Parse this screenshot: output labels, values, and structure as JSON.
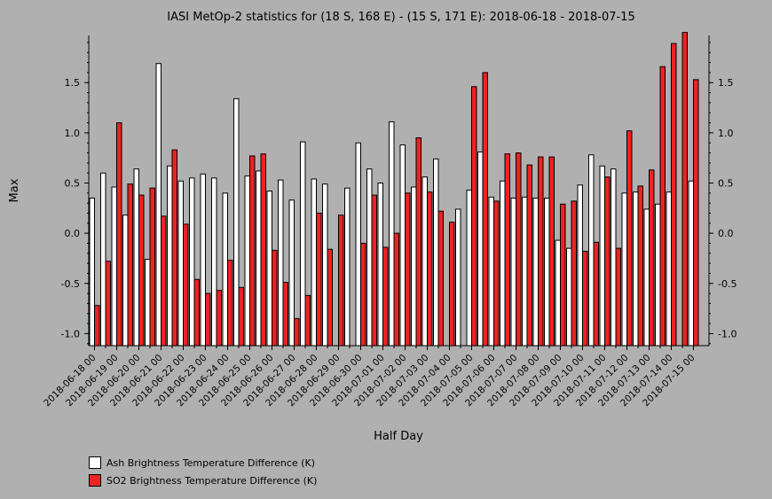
{
  "chart_data": {
    "type": "bar",
    "title": "IASI MetOp-2 statistics for (18 S, 168 E) - (15 S, 171 E): 2018-06-18 - 2018-07-15",
    "xlabel": "Half Day",
    "ylabel": "Max",
    "ylim": [
      -1.12,
      1.97
    ],
    "yticks": [
      -1.0,
      -0.5,
      0.0,
      0.5,
      1.0,
      1.5
    ],
    "ytick_labels": [
      "-1.0",
      "-0.5",
      "0.0",
      "0.5",
      "1.0",
      "1.5"
    ],
    "grid": false,
    "legend_position": "bottom-left",
    "categories": [
      "2018-06-18 00",
      "2018-06-18 12",
      "2018-06-19 00",
      "2018-06-19 12",
      "2018-06-20 00",
      "2018-06-20 12",
      "2018-06-21 00",
      "2018-06-21 12",
      "2018-06-22 00",
      "2018-06-22 12",
      "2018-06-23 00",
      "2018-06-23 12",
      "2018-06-24 00",
      "2018-06-24 12",
      "2018-06-25 00",
      "2018-06-25 12",
      "2018-06-26 00",
      "2018-06-26 12",
      "2018-06-27 00",
      "2018-06-27 12",
      "2018-06-28 00",
      "2018-06-28 12",
      "2018-06-29 00",
      "2018-06-29 12",
      "2018-06-30 00",
      "2018-06-30 12",
      "2018-07-01 00",
      "2018-07-01 12",
      "2018-07-02 00",
      "2018-07-02 12",
      "2018-07-03 00",
      "2018-07-03 12",
      "2018-07-04 00",
      "2018-07-04 12",
      "2018-07-05 00",
      "2018-07-05 12",
      "2018-07-06 00",
      "2018-07-06 12",
      "2018-07-07 00",
      "2018-07-07 12",
      "2018-07-08 00",
      "2018-07-08 12",
      "2018-07-09 00",
      "2018-07-09 12",
      "2018-07-10 00",
      "2018-07-10 12",
      "2018-07-11 00",
      "2018-07-11 12",
      "2018-07-12 00",
      "2018-07-12 12",
      "2018-07-13 00",
      "2018-07-13 12",
      "2018-07-14 00",
      "2018-07-14 12",
      "2018-07-15 00"
    ],
    "xtick_labels": [
      "2018-06-18 00",
      "2018-06-19 00",
      "2018-06-20 00",
      "2018-06-21 00",
      "2018-06-22 00",
      "2018-06-23 00",
      "2018-06-24 00",
      "2018-06-25 00",
      "2018-06-26 00",
      "2018-06-27 00",
      "2018-06-28 00",
      "2018-06-29 00",
      "2018-06-30 00",
      "2018-07-01 00",
      "2018-07-02 00",
      "2018-07-03 00",
      "2018-07-04 00",
      "2018-07-05 00",
      "2018-07-06 00",
      "2018-07-07 00",
      "2018-07-08 00",
      "2018-07-09 00",
      "2018-07-10 00",
      "2018-07-11 00",
      "2018-07-12 00",
      "2018-07-13 00",
      "2018-07-14 00",
      "2018-07-15 00"
    ],
    "series": [
      {
        "name": "Ash Brightness Temperature Difference (K)",
        "color": "#ffffff",
        "values": [
          0.35,
          0.6,
          0.46,
          0.18,
          0.64,
          -0.26,
          1.69,
          0.67,
          0.52,
          0.55,
          0.59,
          0.55,
          0.4,
          1.34,
          0.57,
          0.62,
          0.42,
          0.53,
          0.33,
          0.91,
          0.54,
          0.49,
          null,
          0.45,
          0.9,
          0.64,
          0.5,
          1.11,
          0.88,
          0.46,
          0.56,
          0.74,
          null,
          0.24,
          0.43,
          0.81,
          0.36,
          0.52,
          0.35,
          0.36,
          0.35,
          0.35,
          -0.07,
          -0.15,
          0.48,
          0.78,
          0.67,
          0.64,
          0.4,
          0.41,
          0.24,
          0.29,
          0.41,
          null,
          0.52
        ]
      },
      {
        "name": "SO2 Brightness Temperature Difference (K)",
        "color": "#ee2222",
        "values": [
          -0.72,
          -0.28,
          1.1,
          0.49,
          0.38,
          0.45,
          0.17,
          0.83,
          0.09,
          -0.46,
          -0.6,
          -0.57,
          -0.27,
          -0.54,
          0.77,
          0.79,
          -0.17,
          -0.49,
          -0.85,
          -0.62,
          0.2,
          -0.16,
          0.18,
          null,
          -0.1,
          0.38,
          -0.14,
          0.0,
          0.4,
          0.95,
          0.41,
          0.22,
          0.11,
          null,
          1.46,
          1.6,
          0.32,
          0.79,
          0.8,
          0.68,
          0.76,
          0.76,
          0.29,
          0.32,
          -0.18,
          -0.09,
          0.56,
          -0.15,
          1.02,
          0.47,
          0.63,
          1.66,
          1.89,
          2.0,
          1.53
        ]
      }
    ]
  }
}
